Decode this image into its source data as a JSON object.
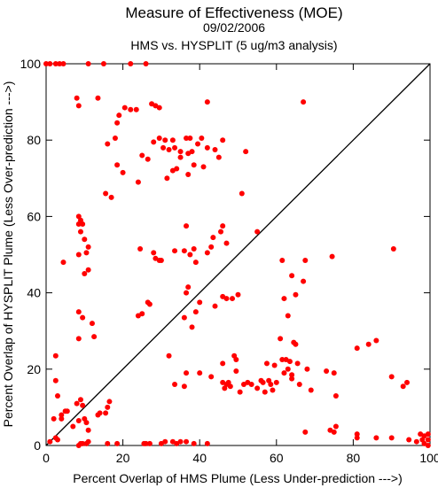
{
  "chart_data": {
    "type": "scatter",
    "title": "Measure of Effectiveness (MOE)",
    "subtitle_date": "09/02/2006",
    "subtitle_comparison": "HMS vs. HYSPLIT  (5 ug/m3 analysis)",
    "xlabel": "Percent Overlap of HMS Plume (Less Under-prediction --->)",
    "ylabel": "Percent Overlap of HYSPLIT Plume (Less Over-prediction --->)",
    "xlim": [
      0,
      100
    ],
    "ylim": [
      0,
      100
    ],
    "x_ticks": [
      "0",
      "20",
      "40",
      "60",
      "80",
      "100"
    ],
    "y_ticks": [
      "0",
      "20",
      "40",
      "60",
      "80",
      "100"
    ],
    "diagonal_reference_line": true,
    "grid": false,
    "point_color": "#ff0000",
    "series": [
      {
        "points": [
          [
            0,
            100
          ],
          [
            1,
            100
          ],
          [
            2.5,
            100
          ],
          [
            3.5,
            100
          ],
          [
            4.5,
            100
          ],
          [
            11,
            100
          ],
          [
            15,
            100
          ],
          [
            22,
            100
          ],
          [
            26,
            100
          ],
          [
            8,
            91
          ],
          [
            8.5,
            89
          ],
          [
            13.5,
            91
          ],
          [
            18.5,
            84.5
          ],
          [
            19,
            86.5
          ],
          [
            20.5,
            88.5
          ],
          [
            22,
            88
          ],
          [
            23.5,
            88
          ],
          [
            27.5,
            89.5
          ],
          [
            28.5,
            89
          ],
          [
            29.5,
            88.5
          ],
          [
            42,
            90
          ],
          [
            67,
            90
          ],
          [
            18,
            80.5
          ],
          [
            31,
            80
          ],
          [
            33,
            80
          ],
          [
            36.5,
            80.5
          ],
          [
            37.5,
            80.5
          ],
          [
            39.5,
            79
          ],
          [
            40.5,
            80.5
          ],
          [
            42,
            78
          ],
          [
            46,
            80
          ],
          [
            16,
            79
          ],
          [
            28,
            79.5
          ],
          [
            29.5,
            80.5
          ],
          [
            30.5,
            78
          ],
          [
            32,
            77.5
          ],
          [
            33.5,
            78
          ],
          [
            35,
            77
          ],
          [
            37,
            76.5
          ],
          [
            38,
            77
          ],
          [
            44,
            77.5
          ],
          [
            52,
            77
          ],
          [
            25,
            76
          ],
          [
            26.5,
            75
          ],
          [
            35,
            75.5
          ],
          [
            45,
            75.5
          ],
          [
            18.5,
            73.5
          ],
          [
            20,
            71.5
          ],
          [
            31.5,
            70
          ],
          [
            33,
            72
          ],
          [
            34,
            72.5
          ],
          [
            37,
            71
          ],
          [
            38.5,
            73.5
          ],
          [
            41,
            73
          ],
          [
            24,
            69
          ],
          [
            51,
            66
          ],
          [
            15.5,
            66
          ],
          [
            17,
            65
          ],
          [
            8.5,
            60
          ],
          [
            9,
            59
          ],
          [
            8.5,
            58
          ],
          [
            9.5,
            58
          ],
          [
            9,
            56
          ],
          [
            10,
            54
          ],
          [
            11,
            52
          ],
          [
            10.5,
            50.5
          ],
          [
            8.5,
            50
          ],
          [
            4.5,
            48
          ],
          [
            11,
            46
          ],
          [
            10,
            45
          ],
          [
            24.5,
            51.5
          ],
          [
            28,
            50.5
          ],
          [
            28.5,
            49
          ],
          [
            29.5,
            48.5
          ],
          [
            30,
            48.5
          ],
          [
            33.5,
            51
          ],
          [
            36,
            51
          ],
          [
            36.5,
            57.5
          ],
          [
            37.5,
            50
          ],
          [
            38.5,
            51.5
          ],
          [
            39,
            48
          ],
          [
            42,
            50.5
          ],
          [
            43,
            52
          ],
          [
            43.5,
            54.5
          ],
          [
            45.5,
            56
          ],
          [
            46,
            57.5
          ],
          [
            47,
            53
          ],
          [
            55,
            56
          ],
          [
            61.5,
            48.5
          ],
          [
            64,
            44.5
          ],
          [
            67.5,
            48.5
          ],
          [
            74.5,
            49.5
          ],
          [
            90.5,
            51.5
          ],
          [
            62,
            38.5
          ],
          [
            65,
            39.5
          ],
          [
            63,
            34
          ],
          [
            67,
            43
          ],
          [
            8.5,
            35
          ],
          [
            9.5,
            33.5
          ],
          [
            12,
            32
          ],
          [
            12.5,
            28.5
          ],
          [
            8.5,
            28
          ],
          [
            24,
            34
          ],
          [
            25,
            34.5
          ],
          [
            26.5,
            37.5
          ],
          [
            27,
            37
          ],
          [
            36.5,
            40
          ],
          [
            37,
            41.5
          ],
          [
            39,
            35
          ],
          [
            36,
            33.5
          ],
          [
            38,
            31
          ],
          [
            40,
            37.5
          ],
          [
            44,
            36.5
          ],
          [
            46,
            39
          ],
          [
            47,
            38.5
          ],
          [
            48.5,
            38.5
          ],
          [
            50,
            39.5
          ],
          [
            2.5,
            23.5
          ],
          [
            2.5,
            17
          ],
          [
            3,
            13
          ],
          [
            5,
            9
          ],
          [
            4,
            8
          ],
          [
            4,
            7
          ],
          [
            5.5,
            9
          ],
          [
            7,
            5
          ],
          [
            8,
            11
          ],
          [
            9,
            12
          ],
          [
            9.5,
            10.5
          ],
          [
            8.5,
            6.5
          ],
          [
            10,
            7
          ],
          [
            10.5,
            6
          ],
          [
            13.5,
            8
          ],
          [
            14,
            8.5
          ],
          [
            16,
            10
          ],
          [
            16.5,
            11.5
          ],
          [
            15.5,
            8.5
          ],
          [
            11,
            4
          ],
          [
            2,
            7
          ],
          [
            1,
            1
          ],
          [
            2.5,
            2
          ],
          [
            3,
            1.5
          ],
          [
            32,
            23.5
          ],
          [
            33.5,
            16
          ],
          [
            36,
            15.5
          ],
          [
            36.5,
            19
          ],
          [
            40,
            19
          ],
          [
            43,
            18
          ],
          [
            46,
            21.5
          ],
          [
            46,
            16.5
          ],
          [
            46.5,
            15
          ],
          [
            47,
            16
          ],
          [
            47.5,
            16.5
          ],
          [
            48,
            15.5
          ],
          [
            49,
            23.5
          ],
          [
            49.5,
            22.5
          ],
          [
            49.5,
            19.5
          ],
          [
            50.5,
            14
          ],
          [
            51.5,
            16
          ],
          [
            52.5,
            16.5
          ],
          [
            53.5,
            16
          ],
          [
            55,
            15
          ],
          [
            56,
            17
          ],
          [
            56.5,
            16.5
          ],
          [
            57,
            14
          ],
          [
            57.5,
            21.5
          ],
          [
            58,
            17
          ],
          [
            58.5,
            16
          ],
          [
            59,
            14.5
          ],
          [
            59.5,
            21
          ],
          [
            60,
            16.5
          ],
          [
            61,
            28
          ],
          [
            61.5,
            22.5
          ],
          [
            62,
            19
          ],
          [
            62.5,
            22.5
          ],
          [
            63,
            20
          ],
          [
            63.5,
            22
          ],
          [
            64,
            18.5
          ],
          [
            64.5,
            27
          ],
          [
            65,
            26.5
          ],
          [
            65.5,
            21.5
          ],
          [
            66,
            16
          ],
          [
            68,
            20
          ],
          [
            69,
            14.5
          ],
          [
            73,
            19.5
          ],
          [
            75,
            19
          ],
          [
            75.5,
            13
          ],
          [
            81,
            25.5
          ],
          [
            84,
            26.5
          ],
          [
            86,
            27.5
          ],
          [
            90,
            18
          ],
          [
            93,
            15.5
          ],
          [
            94,
            16.5
          ],
          [
            64,
            17.5
          ],
          [
            67.5,
            3.5
          ],
          [
            74,
            4
          ],
          [
            75,
            3.5
          ],
          [
            75.5,
            5
          ],
          [
            81,
            2
          ],
          [
            81,
            3
          ],
          [
            86,
            2
          ],
          [
            90,
            2
          ],
          [
            94.5,
            1.5
          ],
          [
            96.5,
            1
          ],
          [
            97.5,
            3
          ],
          [
            98,
            1.5
          ],
          [
            98.5,
            2.5
          ],
          [
            99.5,
            3
          ],
          [
            99.5,
            1.5
          ],
          [
            98.5,
            0.5
          ],
          [
            99.5,
            0
          ],
          [
            8.5,
            0
          ],
          [
            9,
            0.5
          ],
          [
            9.5,
            0.5
          ],
          [
            10.5,
            0.5
          ],
          [
            11,
            1
          ],
          [
            16,
            0.5
          ],
          [
            18.5,
            0.5
          ],
          [
            25.5,
            0.5
          ],
          [
            26,
            0.5
          ],
          [
            27,
            0.5
          ],
          [
            30,
            0.5
          ],
          [
            31,
            1
          ],
          [
            33,
            1
          ],
          [
            34,
            0.5
          ],
          [
            35,
            1
          ],
          [
            36.5,
            1
          ],
          [
            38.5,
            0.5
          ],
          [
            42,
            0.5
          ]
        ]
      }
    ]
  }
}
